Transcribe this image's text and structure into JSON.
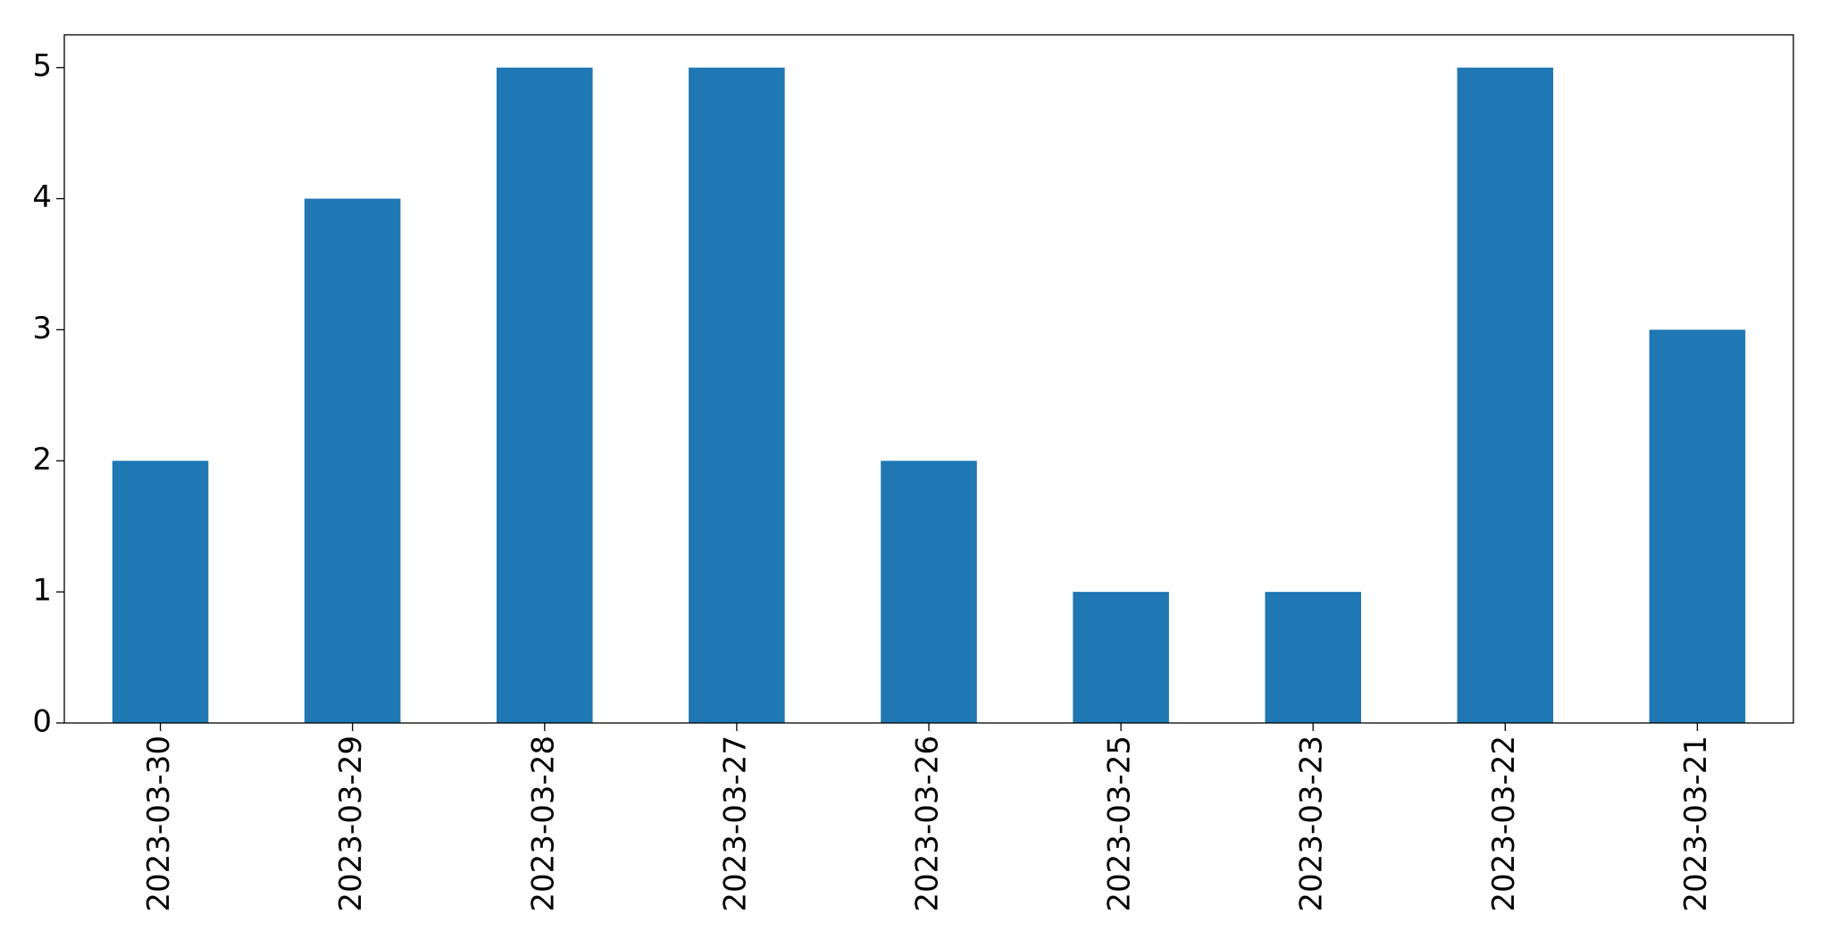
{
  "chart_data": {
    "type": "bar",
    "categories": [
      "2023-03-30",
      "2023-03-29",
      "2023-03-28",
      "2023-03-27",
      "2023-03-26",
      "2023-03-25",
      "2023-03-23",
      "2023-03-22",
      "2023-03-21"
    ],
    "values": [
      2,
      4,
      5,
      5,
      2,
      1,
      1,
      5,
      3
    ],
    "color": "#1f77b4",
    "ylim": [
      0,
      5.25
    ],
    "yticks": [
      0,
      1,
      2,
      3,
      4,
      5
    ],
    "grid": false
  }
}
